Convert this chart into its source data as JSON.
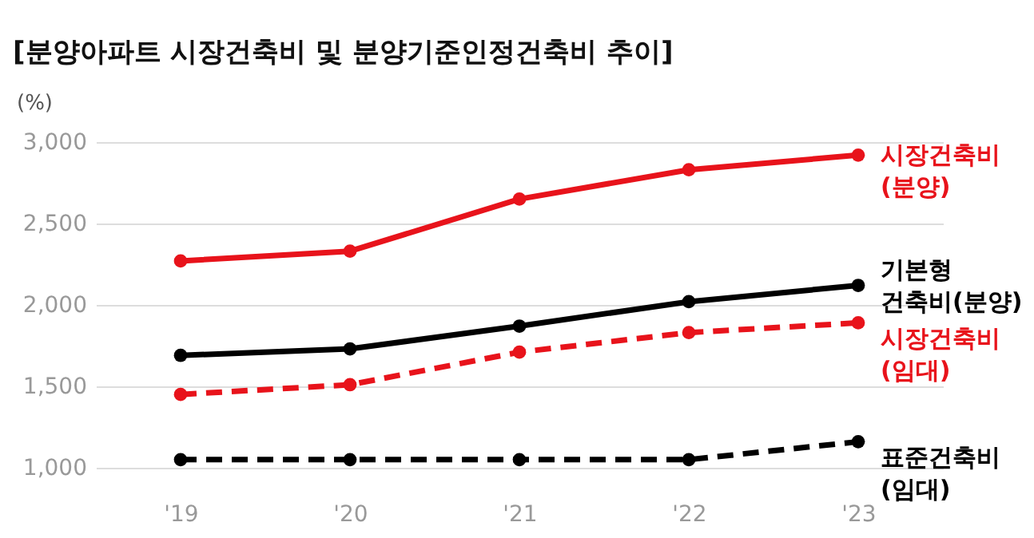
{
  "chart_data": {
    "type": "line",
    "title": "[분양아파트 시장건축비 및 분양기준인정건축비 추이]",
    "ylabel": "(%)",
    "categories": [
      "'19",
      "'20",
      "'21",
      "'22",
      "'23"
    ],
    "series": [
      {
        "name": "시장건축비\n(분양)",
        "color": "#e8131b",
        "line_style": "solid",
        "values": [
          2270,
          2330,
          2650,
          2830,
          2920
        ]
      },
      {
        "name": "기본형\n건축비(분양)",
        "color": "#000000",
        "line_style": "solid",
        "values": [
          1690,
          1730,
          1870,
          2020,
          2120
        ]
      },
      {
        "name": "시장건축비\n(임대)",
        "color": "#e8131b",
        "line_style": "dashed",
        "values": [
          1450,
          1510,
          1710,
          1830,
          1890
        ]
      },
      {
        "name": "표준건축비\n(임대)",
        "color": "#000000",
        "line_style": "dashed",
        "values": [
          1050,
          1050,
          1050,
          1050,
          1160
        ]
      }
    ],
    "ylim": [
      1000,
      3000
    ],
    "yticks": [
      {
        "value": 1000,
        "label": "1,000"
      },
      {
        "value": 1500,
        "label": "1,500"
      },
      {
        "value": 2000,
        "label": "2,000"
      },
      {
        "value": 2500,
        "label": "2,500"
      },
      {
        "value": 3000,
        "label": "3,000"
      }
    ],
    "grid": "y",
    "marker": "circle"
  }
}
